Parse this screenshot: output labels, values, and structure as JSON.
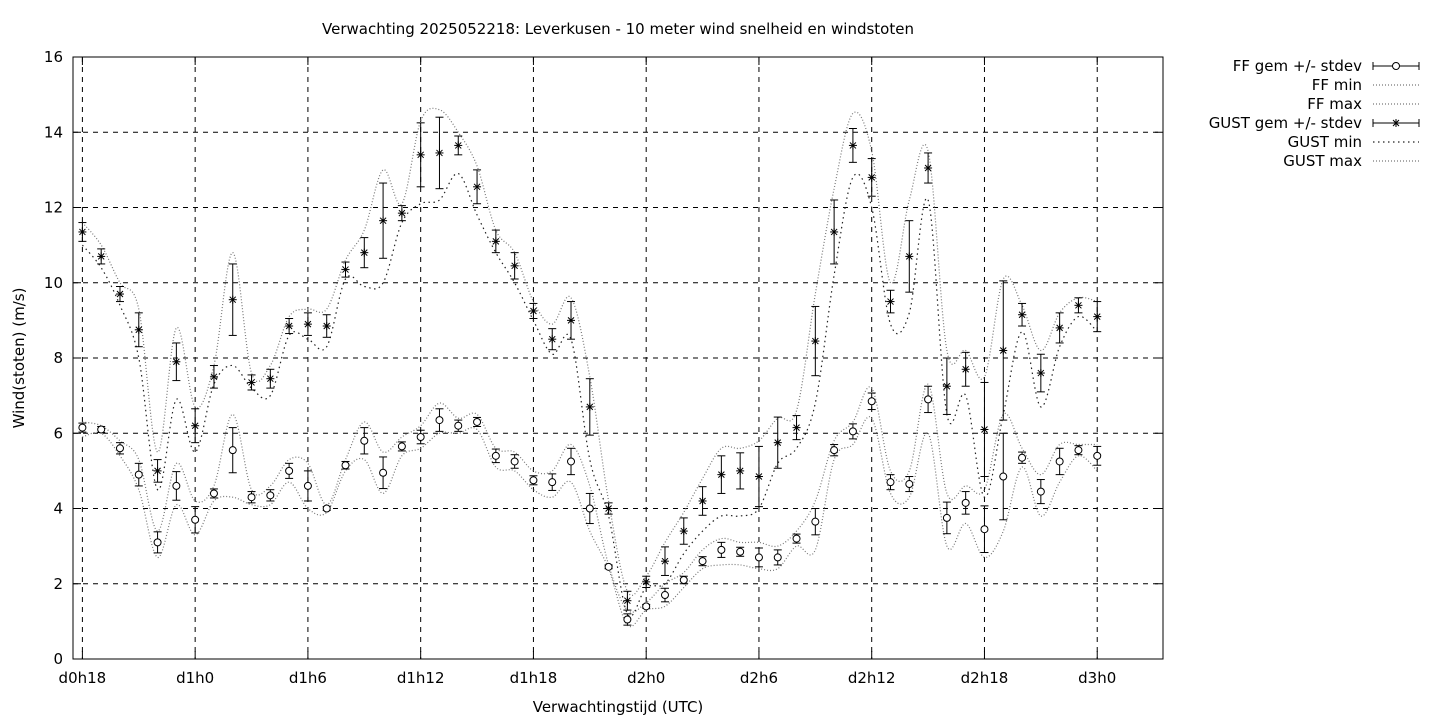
{
  "chart_data": {
    "type": "line",
    "title": "Verwachting 2025052218: Leverkusen - 10 meter wind snelheid en windstoten",
    "xlabel": "Verwachtingstijd (UTC)",
    "ylabel": "Wind(stoten) (m/s)",
    "ylim": [
      0,
      16
    ],
    "yticks": [
      0,
      2,
      4,
      6,
      8,
      10,
      12,
      14,
      16
    ],
    "xlim": [
      -0.5,
      57.5
    ],
    "xticks": [
      {
        "x": 0,
        "label": "d0h18"
      },
      {
        "x": 6,
        "label": "d1h0"
      },
      {
        "x": 12,
        "label": "d1h6"
      },
      {
        "x": 18,
        "label": "d1h12"
      },
      {
        "x": 24,
        "label": "d1h18"
      },
      {
        "x": 30,
        "label": "d2h0"
      },
      {
        "x": 36,
        "label": "d2h6"
      },
      {
        "x": 42,
        "label": "d2h12"
      },
      {
        "x": 48,
        "label": "d2h18"
      },
      {
        "x": 54,
        "label": "d3h0"
      }
    ],
    "grid": true,
    "legend_position": "outside-right",
    "x_unit": "hours after d0h18",
    "x": [
      0,
      1,
      2,
      3,
      4,
      5,
      6,
      7,
      8,
      9,
      10,
      11,
      12,
      13,
      14,
      15,
      16,
      17,
      18,
      19,
      20,
      21,
      22,
      23,
      24,
      25,
      26,
      27,
      28,
      29,
      30,
      31,
      32,
      33,
      34,
      35,
      36,
      37,
      38,
      39,
      40,
      41,
      42,
      43,
      44,
      45,
      46,
      47,
      48,
      49,
      50,
      51,
      52,
      53,
      54
    ],
    "series": [
      {
        "name": "FF gem +/- stdev",
        "kind": "errorbar",
        "marker": "circle",
        "values": [
          6.15,
          6.1,
          5.6,
          4.9,
          3.1,
          4.6,
          3.7,
          4.4,
          5.55,
          4.3,
          4.35,
          5.0,
          4.6,
          4.0,
          5.15,
          5.8,
          4.95,
          5.65,
          5.9,
          6.35,
          6.2,
          6.3,
          5.4,
          5.25,
          4.75,
          4.7,
          5.25,
          4.0,
          2.45,
          1.05,
          1.4,
          1.7,
          2.1,
          2.6,
          2.9,
          2.85,
          2.7,
          2.7,
          3.2,
          3.65,
          5.55,
          6.05,
          6.85,
          4.7,
          4.65,
          6.9,
          3.75,
          4.15,
          3.45,
          4.85,
          5.35,
          4.45,
          5.25,
          5.55,
          5.4
        ],
        "stdev": [
          0.12,
          0.08,
          0.15,
          0.3,
          0.28,
          0.38,
          0.35,
          0.12,
          0.6,
          0.15,
          0.15,
          0.2,
          0.4,
          0.05,
          0.1,
          0.35,
          0.42,
          0.12,
          0.18,
          0.3,
          0.15,
          0.12,
          0.18,
          0.18,
          0.12,
          0.22,
          0.35,
          0.4,
          0.05,
          0.15,
          0.05,
          0.18,
          0.1,
          0.12,
          0.2,
          0.12,
          0.25,
          0.2,
          0.12,
          0.35,
          0.15,
          0.2,
          0.22,
          0.2,
          0.2,
          0.35,
          0.42,
          0.3,
          0.62,
          1.15,
          0.15,
          0.32,
          0.35,
          0.12,
          0.25
        ]
      },
      {
        "name": "FF min",
        "kind": "dotted-line",
        "values": [
          5.9,
          6.0,
          5.4,
          4.5,
          2.7,
          4.1,
          3.3,
          4.2,
          4.3,
          4.1,
          4.1,
          4.7,
          4.0,
          3.9,
          5.0,
          5.3,
          4.4,
          5.4,
          5.6,
          6.0,
          6.0,
          6.1,
          5.1,
          5.0,
          4.5,
          4.3,
          4.7,
          3.4,
          2.4,
          0.9,
          1.3,
          1.4,
          1.9,
          2.4,
          2.5,
          2.5,
          2.4,
          2.4,
          3.0,
          2.9,
          5.3,
          5.7,
          6.4,
          4.4,
          4.3,
          6.0,
          3.0,
          3.6,
          2.7,
          3.4,
          5.1,
          3.8,
          4.7,
          5.4,
          5.0
        ]
      },
      {
        "name": "FF max",
        "kind": "dotted-line",
        "values": [
          6.3,
          6.2,
          5.8,
          5.3,
          3.4,
          5.2,
          4.2,
          4.6,
          6.5,
          4.5,
          4.6,
          5.3,
          5.2,
          4.1,
          5.3,
          6.3,
          5.5,
          5.9,
          6.2,
          6.8,
          6.4,
          6.5,
          5.6,
          5.5,
          5.0,
          5.0,
          5.7,
          4.6,
          2.5,
          1.3,
          1.5,
          2.0,
          2.3,
          2.9,
          3.2,
          3.1,
          3.1,
          3.0,
          3.4,
          4.2,
          5.8,
          6.3,
          7.2,
          5.0,
          5.0,
          7.3,
          4.4,
          4.6,
          4.5,
          6.5,
          5.6,
          4.9,
          5.7,
          5.7,
          5.7
        ]
      },
      {
        "name": "GUST gem +/- stdev",
        "kind": "errorbar",
        "marker": "star",
        "values": [
          11.35,
          10.7,
          9.7,
          8.75,
          5.0,
          7.9,
          6.2,
          7.5,
          9.55,
          7.35,
          7.45,
          8.85,
          8.9,
          8.85,
          10.35,
          10.8,
          11.65,
          11.85,
          13.4,
          13.45,
          13.65,
          12.55,
          11.1,
          10.45,
          9.25,
          8.5,
          9.0,
          6.7,
          4.0,
          1.55,
          2.05,
          2.6,
          3.4,
          4.2,
          4.9,
          5.0,
          4.85,
          5.75,
          6.15,
          8.45,
          11.35,
          13.65,
          12.8,
          9.5,
          10.7,
          13.05,
          7.25,
          7.7,
          6.1,
          8.2,
          9.15,
          7.6,
          8.8,
          9.4,
          9.1
        ],
        "stdev": [
          0.25,
          0.2,
          0.2,
          0.45,
          0.3,
          0.5,
          0.45,
          0.3,
          0.95,
          0.2,
          0.25,
          0.2,
          0.3,
          0.3,
          0.2,
          0.4,
          1.0,
          0.2,
          0.85,
          0.95,
          0.25,
          0.45,
          0.3,
          0.35,
          0.2,
          0.28,
          0.5,
          0.75,
          0.15,
          0.25,
          0.15,
          0.38,
          0.35,
          0.38,
          0.5,
          0.48,
          0.8,
          0.68,
          0.32,
          0.92,
          0.85,
          0.45,
          0.5,
          0.3,
          0.95,
          0.4,
          0.75,
          0.45,
          1.25,
          1.85,
          0.3,
          0.5,
          0.4,
          0.2,
          0.4
        ]
      },
      {
        "name": "GUST min",
        "kind": "dotted-line",
        "values": [
          11.0,
          10.4,
          9.4,
          8.0,
          4.5,
          6.9,
          5.5,
          7.3,
          7.8,
          7.2,
          7.0,
          8.6,
          8.5,
          8.3,
          10.1,
          9.9,
          10.0,
          11.6,
          12.1,
          12.2,
          12.9,
          11.8,
          10.8,
          10.0,
          9.0,
          8.1,
          8.5,
          5.3,
          3.8,
          1.2,
          1.9,
          2.0,
          2.8,
          3.4,
          3.8,
          3.8,
          4.0,
          5.2,
          5.6,
          6.8,
          10.2,
          12.8,
          12.0,
          8.9,
          9.2,
          12.2,
          6.5,
          7.0,
          4.3,
          6.5,
          8.7,
          6.7,
          8.3,
          9.1,
          8.7
        ]
      },
      {
        "name": "GUST max",
        "kind": "dotted-line",
        "values": [
          11.6,
          11.0,
          10.0,
          9.3,
          5.5,
          8.8,
          6.7,
          7.8,
          10.8,
          7.6,
          7.8,
          9.1,
          9.3,
          9.3,
          10.6,
          11.4,
          13.0,
          12.1,
          14.3,
          14.6,
          14.0,
          13.1,
          11.4,
          10.8,
          9.5,
          8.9,
          9.6,
          7.5,
          4.2,
          1.8,
          2.2,
          3.1,
          3.9,
          4.8,
          5.6,
          5.6,
          5.8,
          6.4,
          6.6,
          9.7,
          12.5,
          14.5,
          13.5,
          10.0,
          12.2,
          13.5,
          8.2,
          8.2,
          7.5,
          10.1,
          9.4,
          8.2,
          9.2,
          9.6,
          9.5
        ]
      }
    ]
  }
}
